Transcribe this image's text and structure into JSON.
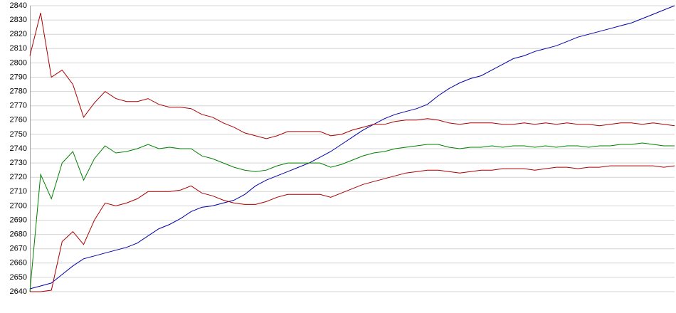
{
  "chart_data": {
    "type": "line",
    "ylim": [
      2640,
      2840
    ],
    "yticks": [
      2640,
      2650,
      2660,
      2670,
      2680,
      2690,
      2700,
      2710,
      2720,
      2730,
      2740,
      2750,
      2760,
      2770,
      2780,
      2790,
      2800,
      2810,
      2820,
      2830,
      2840
    ],
    "grid": true,
    "series": [
      {
        "color": "#0000aa",
        "values": [
          2642,
          2644,
          2646,
          2652,
          2658,
          2663,
          2665,
          2667,
          2669,
          2671,
          2674,
          2679,
          2684,
          2687,
          2691,
          2696,
          2699,
          2700,
          2702,
          2704,
          2708,
          2714,
          2718,
          2721,
          2724,
          2727,
          2730,
          2734,
          2738,
          2743,
          2748,
          2753,
          2757,
          2761,
          2764,
          2766,
          2768,
          2771,
          2777,
          2782,
          2786,
          2789,
          2791,
          2795,
          2799,
          2803,
          2805,
          2808,
          2810,
          2812,
          2815,
          2818,
          2820,
          2822,
          2824,
          2826,
          2828,
          2831,
          2834,
          2837,
          2840
        ]
      },
      {
        "color": "#aa0000",
        "values": [
          2805,
          2835,
          2790,
          2795,
          2785,
          2762,
          2772,
          2780,
          2775,
          2773,
          2773,
          2775,
          2771,
          2769,
          2769,
          2768,
          2764,
          2762,
          2758,
          2755,
          2751,
          2749,
          2747,
          2749,
          2752,
          2752,
          2752,
          2752,
          2749,
          2750,
          2753,
          2755,
          2757,
          2757,
          2759,
          2760,
          2760,
          2761,
          2760,
          2758,
          2757,
          2758,
          2758,
          2758,
          2757,
          2757,
          2758,
          2757,
          2758,
          2757,
          2758,
          2757,
          2757,
          2756,
          2757,
          2758,
          2758,
          2757,
          2758,
          2757,
          2756
        ]
      },
      {
        "color": "#008000",
        "values": [
          2640,
          2722,
          2705,
          2730,
          2738,
          2718,
          2733,
          2742,
          2737,
          2738,
          2740,
          2743,
          2740,
          2741,
          2740,
          2740,
          2735,
          2733,
          2730,
          2727,
          2725,
          2724,
          2725,
          2728,
          2730,
          2730,
          2730,
          2730,
          2727,
          2729,
          2732,
          2735,
          2737,
          2738,
          2740,
          2741,
          2742,
          2743,
          2743,
          2741,
          2740,
          2741,
          2741,
          2742,
          2741,
          2742,
          2742,
          2741,
          2742,
          2741,
          2742,
          2742,
          2741,
          2742,
          2742,
          2743,
          2743,
          2744,
          2743,
          2742,
          2742
        ]
      },
      {
        "color": "#aa0000",
        "values": [
          2640,
          2640,
          2641,
          2675,
          2682,
          2673,
          2690,
          2702,
          2700,
          2702,
          2705,
          2710,
          2710,
          2710,
          2711,
          2714,
          2709,
          2707,
          2704,
          2702,
          2701,
          2701,
          2703,
          2706,
          2708,
          2708,
          2708,
          2708,
          2706,
          2709,
          2712,
          2715,
          2717,
          2719,
          2721,
          2723,
          2724,
          2725,
          2725,
          2724,
          2723,
          2724,
          2725,
          2725,
          2726,
          2726,
          2726,
          2725,
          2726,
          2727,
          2727,
          2726,
          2727,
          2727,
          2728,
          2728,
          2728,
          2728,
          2728,
          2727,
          2728
        ]
      }
    ]
  }
}
